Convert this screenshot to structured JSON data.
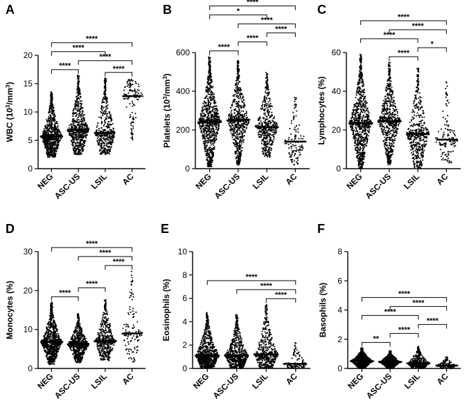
{
  "figure": {
    "panel_count": 6
  },
  "chart_data": [
    {
      "panel": "A",
      "type": "scatter",
      "title": "",
      "ylabel_main": "WBC (10",
      "ylabel_sup": "3",
      "ylabel_mid": "/mm",
      "ylabel_sup2": "3",
      "ylabel_end": ")",
      "categories": [
        "NEG",
        "ASC-US",
        "LSIL",
        "AC"
      ],
      "medians": [
        5.7,
        6.8,
        6.3,
        12.8
      ],
      "spread_min": [
        2.0,
        2.5,
        2.5,
        5.0
      ],
      "spread_max": [
        13.5,
        16.5,
        16.0,
        16.0
      ],
      "point_counts": [
        900,
        700,
        500,
        130
      ],
      "ylim": [
        0,
        20
      ],
      "yticks": [
        0,
        5,
        10,
        15,
        20
      ],
      "comparisons": [
        {
          "from": 0,
          "to": 1,
          "label": "****"
        },
        {
          "from": 2,
          "to": 3,
          "label": "****"
        },
        {
          "from": 1,
          "to": 3,
          "label": "****"
        },
        {
          "from": 0,
          "to": 2,
          "label": "****"
        },
        {
          "from": 0,
          "to": 3,
          "label": "****"
        }
      ]
    },
    {
      "panel": "B",
      "type": "scatter",
      "ylabel_main": "Platelets (10",
      "ylabel_sup": "3",
      "ylabel_mid": "/mm",
      "ylabel_sup2": "3",
      "ylabel_end": ")",
      "categories": [
        "NEG",
        "ASC-US",
        "LSIL",
        "AC"
      ],
      "medians": [
        240,
        250,
        215,
        140
      ],
      "spread_min": [
        10,
        20,
        60,
        20
      ],
      "spread_max": [
        580,
        560,
        500,
        370
      ],
      "point_counts": [
        900,
        700,
        500,
        130
      ],
      "ylim": [
        0,
        600
      ],
      "yticks": [
        0,
        200,
        400,
        600
      ],
      "comparisons": [
        {
          "from": 0,
          "to": 1,
          "label": "****"
        },
        {
          "from": 1,
          "to": 2,
          "label": "****"
        },
        {
          "from": 2,
          "to": 3,
          "label": "****"
        },
        {
          "from": 1,
          "to": 3,
          "label": "****"
        },
        {
          "from": 0,
          "to": 2,
          "label": "*"
        },
        {
          "from": 0,
          "to": 3,
          "label": "****"
        }
      ]
    },
    {
      "panel": "C",
      "type": "scatter",
      "ylabel_main": "Lymphocytes (%)",
      "categories": [
        "NEG",
        "ASC-US",
        "LSIL",
        "AC"
      ],
      "medians": [
        23.5,
        24.5,
        18,
        15
      ],
      "spread_min": [
        0,
        2,
        0,
        3
      ],
      "spread_max": [
        59,
        55,
        52,
        45
      ],
      "point_counts": [
        900,
        700,
        500,
        130
      ],
      "ylim": [
        0,
        60
      ],
      "yticks": [
        0,
        20,
        40,
        60
      ],
      "comparisons": [
        {
          "from": 1,
          "to": 2,
          "label": "****"
        },
        {
          "from": 2,
          "to": 3,
          "label": "*"
        },
        {
          "from": 0,
          "to": 2,
          "label": "****"
        },
        {
          "from": 1,
          "to": 3,
          "label": "****"
        },
        {
          "from": 0,
          "to": 3,
          "label": "****"
        }
      ]
    },
    {
      "panel": "D",
      "type": "scatter",
      "ylabel_main": "Monocytes (%)",
      "categories": [
        "NEG",
        "ASC-US",
        "LSIL",
        "AC"
      ],
      "medians": [
        6.8,
        6.2,
        7.0,
        9.0
      ],
      "spread_min": [
        1.0,
        1.5,
        2.0,
        1.5
      ],
      "spread_max": [
        17,
        14,
        18,
        25
      ],
      "point_counts": [
        900,
        700,
        500,
        130
      ],
      "ylim": [
        0,
        30
      ],
      "yticks": [
        0,
        10,
        20,
        30
      ],
      "comparisons": [
        {
          "from": 0,
          "to": 1,
          "label": "****"
        },
        {
          "from": 1,
          "to": 2,
          "label": "****"
        },
        {
          "from": 2,
          "to": 3,
          "label": "****"
        },
        {
          "from": 1,
          "to": 3,
          "label": "****"
        },
        {
          "from": 0,
          "to": 3,
          "label": "****"
        }
      ]
    },
    {
      "panel": "E",
      "type": "scatter",
      "ylabel_main": "Eosinophils (%)",
      "categories": [
        "NEG",
        "ASC-US",
        "LSIL",
        "AC"
      ],
      "medians": [
        1.1,
        1.1,
        1.2,
        0.4
      ],
      "spread_min": [
        0,
        0,
        0,
        0
      ],
      "spread_max": [
        4.8,
        4.6,
        5.5,
        2.2
      ],
      "point_counts": [
        900,
        700,
        500,
        130
      ],
      "ylim": [
        0,
        10
      ],
      "yticks": [
        0,
        2,
        4,
        6,
        8,
        10
      ],
      "comparisons": [
        {
          "from": 2,
          "to": 3,
          "label": "****"
        },
        {
          "from": 1,
          "to": 3,
          "label": "****"
        },
        {
          "from": 0,
          "to": 3,
          "label": "****"
        }
      ]
    },
    {
      "panel": "F",
      "type": "scatter",
      "ylabel_main": "Basophils (%)",
      "categories": [
        "NEG",
        "ASC-US",
        "LSIL",
        "AC"
      ],
      "medians": [
        0.5,
        0.45,
        0.35,
        0.2
      ],
      "spread_min": [
        0,
        0,
        0,
        0
      ],
      "spread_max": [
        1.4,
        1.2,
        1.5,
        0.8
      ],
      "point_counts": [
        900,
        700,
        500,
        130
      ],
      "ylim": [
        0,
        8
      ],
      "yticks": [
        0,
        2,
        4,
        6,
        8
      ],
      "comparisons": [
        {
          "from": 0,
          "to": 1,
          "label": "**"
        },
        {
          "from": 1,
          "to": 2,
          "label": "****"
        },
        {
          "from": 2,
          "to": 3,
          "label": "****"
        },
        {
          "from": 0,
          "to": 2,
          "label": "****"
        },
        {
          "from": 1,
          "to": 3,
          "label": "****"
        },
        {
          "from": 0,
          "to": 3,
          "label": "****"
        }
      ]
    }
  ]
}
